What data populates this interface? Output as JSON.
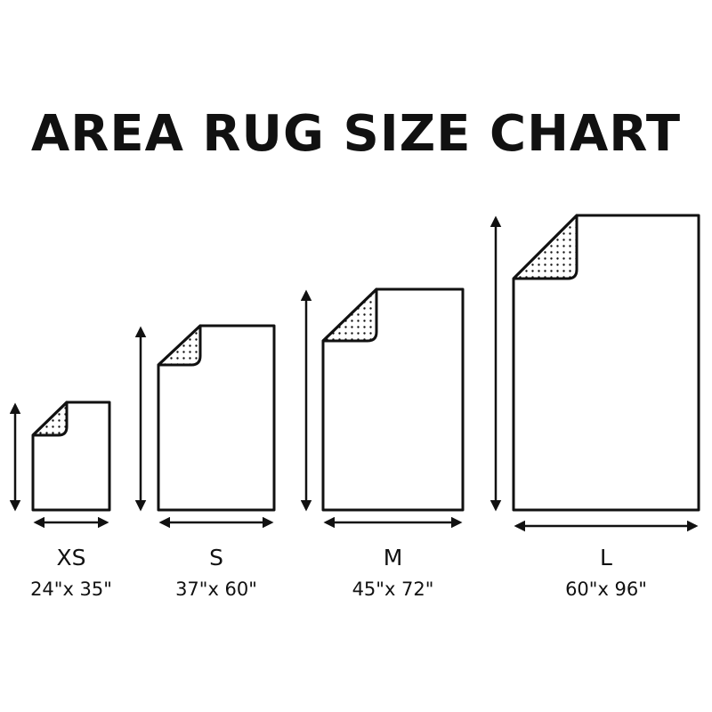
{
  "title": "AREA RUG SIZE CHART",
  "colors": {
    "stroke": "#111111",
    "background": "#ffffff"
  },
  "rugs": [
    {
      "size": "XS",
      "dimensions": "24\"x 35\"",
      "width_in": 24,
      "length_in": 35
    },
    {
      "size": "S",
      "dimensions": "37\"x 60\"",
      "width_in": 37,
      "length_in": 60
    },
    {
      "size": "M",
      "dimensions": "45\"x 72\"",
      "width_in": 45,
      "length_in": 72
    },
    {
      "size": "L",
      "dimensions": "60\"x 96\"",
      "width_in": 60,
      "length_in": 96
    }
  ]
}
